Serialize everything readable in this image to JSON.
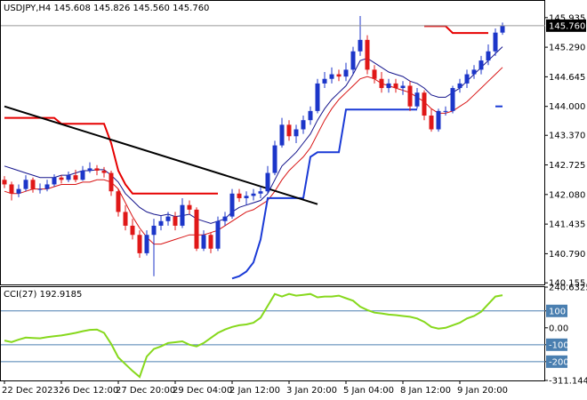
{
  "chart_data": [
    {
      "type": "candlestick",
      "title": "USDJPY,H4  145.608 145.826 145.560 145.760",
      "categories": [
        "22 Dec 2023",
        null,
        null,
        null,
        null,
        null,
        null,
        null,
        "26 Dec 12:00",
        null,
        null,
        null,
        null,
        null,
        null,
        null,
        "27 Dec 20:00",
        null,
        null,
        null,
        null,
        null,
        null,
        null,
        "29 Dec 04:00",
        null,
        null,
        null,
        null,
        null,
        null,
        null,
        "2 Jan 12:00",
        null,
        null,
        null,
        null,
        null,
        null,
        null,
        "3 Jan 20:00",
        null,
        null,
        null,
        null,
        null,
        null,
        null,
        "5 Jan 04:00",
        null,
        null,
        null,
        null,
        null,
        null,
        null,
        "8 Jan 12:00",
        null,
        null,
        null,
        null,
        null,
        null,
        null,
        "9 Jan 20:00",
        null,
        null,
        null,
        null,
        null,
        null
      ],
      "open": [
        142.4,
        142.3,
        142.1,
        142.2,
        142.4,
        142.2,
        142.2,
        142.3,
        142.45,
        142.4,
        142.5,
        142.4,
        142.6,
        142.65,
        142.6,
        142.55,
        142.15,
        141.7,
        141.4,
        141.2,
        140.8,
        141.2,
        141.4,
        141.5,
        141.6,
        141.4,
        141.85,
        141.75,
        140.9,
        141.2,
        140.9,
        141.5,
        141.6,
        142.1,
        142.0,
        142.05,
        142.1,
        142.15,
        142.55,
        143.15,
        143.6,
        143.35,
        143.5,
        143.7,
        143.9,
        144.5,
        144.6,
        144.7,
        144.65,
        144.8,
        145.2,
        145.45,
        144.8,
        144.6,
        144.4,
        144.5,
        144.4,
        144.45,
        144.0,
        144.3,
        143.8,
        143.5,
        143.9,
        143.9,
        144.4,
        144.5,
        144.7,
        144.8,
        145.0,
        145.2,
        145.608
      ],
      "high": [
        142.48,
        142.36,
        142.3,
        142.5,
        142.45,
        142.32,
        142.4,
        142.52,
        142.5,
        142.58,
        142.62,
        142.7,
        142.78,
        142.72,
        142.68,
        142.6,
        142.2,
        141.85,
        141.55,
        141.3,
        141.3,
        141.55,
        141.62,
        141.7,
        141.7,
        142.0,
        141.95,
        141.8,
        141.3,
        141.25,
        141.6,
        141.7,
        142.2,
        142.2,
        142.15,
        142.2,
        142.25,
        142.7,
        143.25,
        143.75,
        143.7,
        143.6,
        143.8,
        144.0,
        144.6,
        144.75,
        144.85,
        144.8,
        144.95,
        145.3,
        145.97,
        145.55,
        144.9,
        144.75,
        144.6,
        144.6,
        144.55,
        144.55,
        144.4,
        144.35,
        143.95,
        143.95,
        144.0,
        144.45,
        144.6,
        144.8,
        144.9,
        145.1,
        145.35,
        145.7,
        145.826
      ],
      "low": [
        142.22,
        141.95,
        142.02,
        142.15,
        142.12,
        142.1,
        142.15,
        142.25,
        142.32,
        142.35,
        142.35,
        142.38,
        142.55,
        142.5,
        142.45,
        142.05,
        141.6,
        141.3,
        141.1,
        140.7,
        140.75,
        140.3,
        141.3,
        141.4,
        141.3,
        141.35,
        141.65,
        140.85,
        140.85,
        140.8,
        140.85,
        141.4,
        141.55,
        141.92,
        141.85,
        141.95,
        142.0,
        142.1,
        142.5,
        143.1,
        143.25,
        143.2,
        143.4,
        143.6,
        143.85,
        144.4,
        144.5,
        144.55,
        144.55,
        144.7,
        145.1,
        144.7,
        144.5,
        144.3,
        144.3,
        144.3,
        144.25,
        143.9,
        143.95,
        143.7,
        143.45,
        143.45,
        143.8,
        143.85,
        144.3,
        144.4,
        144.6,
        144.7,
        144.9,
        145.1,
        145.56
      ],
      "close": [
        142.3,
        142.1,
        142.2,
        142.4,
        142.2,
        142.2,
        142.3,
        142.45,
        142.4,
        142.5,
        142.4,
        142.6,
        142.65,
        142.6,
        142.55,
        142.15,
        141.7,
        141.4,
        141.2,
        140.8,
        141.2,
        141.4,
        141.5,
        141.6,
        141.4,
        141.85,
        141.75,
        140.9,
        141.2,
        140.9,
        141.5,
        141.6,
        142.1,
        142.0,
        142.05,
        142.1,
        142.15,
        142.55,
        143.15,
        143.6,
        143.35,
        143.5,
        143.7,
        143.9,
        144.5,
        144.6,
        144.7,
        144.65,
        144.8,
        145.2,
        145.45,
        144.8,
        144.6,
        144.4,
        144.5,
        144.4,
        144.45,
        144.0,
        144.3,
        143.8,
        143.5,
        143.9,
        143.9,
        144.4,
        144.5,
        144.7,
        144.8,
        145.0,
        145.2,
        145.608,
        145.76
      ],
      "up_color": "#1c36c9",
      "down_color": "#e01818",
      "series": [
        {
          "color": "#d81414",
          "width": 1,
          "values": [
            142.15,
            142.1,
            142.1,
            142.15,
            142.2,
            142.2,
            142.2,
            142.25,
            142.3,
            142.3,
            142.3,
            142.35,
            142.35,
            142.4,
            142.4,
            142.35,
            142.2,
            141.9,
            141.6,
            141.35,
            141.15,
            141.0,
            141.0,
            141.05,
            141.1,
            141.15,
            141.2,
            141.2,
            141.2,
            141.25,
            141.3,
            141.4,
            141.5,
            141.6,
            141.7,
            141.75,
            141.85,
            141.95,
            142.15,
            142.4,
            142.6,
            142.75,
            142.9,
            143.1,
            143.4,
            143.7,
            143.95,
            144.15,
            144.3,
            144.45,
            144.6,
            144.65,
            144.6,
            144.5,
            144.45,
            144.4,
            144.35,
            144.3,
            144.2,
            144.1,
            143.95,
            143.85,
            143.85,
            143.9,
            144.0,
            144.1,
            144.25,
            144.4,
            144.55,
            144.7,
            144.85
          ]
        },
        {
          "color": "#14148c",
          "width": 1,
          "values": [
            142.7,
            142.65,
            142.6,
            142.55,
            142.5,
            142.45,
            142.45,
            142.45,
            142.5,
            142.5,
            142.55,
            142.6,
            142.6,
            142.62,
            142.62,
            142.5,
            142.35,
            142.1,
            141.95,
            141.8,
            141.7,
            141.65,
            141.62,
            141.65,
            141.6,
            141.62,
            141.65,
            141.55,
            141.5,
            141.45,
            141.5,
            141.55,
            141.7,
            141.8,
            141.85,
            141.9,
            141.95,
            142.1,
            142.4,
            142.7,
            142.85,
            143.0,
            143.2,
            143.4,
            143.7,
            143.95,
            144.15,
            144.3,
            144.45,
            144.7,
            145.0,
            145.05,
            144.95,
            144.85,
            144.75,
            144.7,
            144.65,
            144.55,
            144.5,
            144.4,
            144.25,
            144.2,
            144.2,
            144.3,
            144.4,
            144.55,
            144.7,
            144.85,
            145.0,
            145.15,
            145.3
          ]
        },
        {
          "color": "#e60000",
          "width": 2,
          "values": [
            143.75,
            143.75,
            143.75,
            143.75,
            143.75,
            143.75,
            143.75,
            143.75,
            143.62,
            143.62,
            143.62,
            143.62,
            143.62,
            143.62,
            143.62,
            143.2,
            142.6,
            142.3,
            142.1,
            142.1,
            142.1,
            142.1,
            142.1,
            142.1,
            142.1,
            142.1,
            142.1,
            142.1,
            142.1,
            142.1,
            142.1,
            null,
            null,
            null,
            null,
            null,
            null,
            null,
            null,
            null,
            null,
            null,
            null,
            null,
            null,
            null,
            null,
            null,
            null,
            null,
            null,
            null,
            null,
            null,
            null,
            null,
            null,
            null,
            null,
            145.75,
            145.75,
            145.75,
            145.75,
            145.6,
            145.6,
            145.6,
            145.6,
            145.6,
            145.6,
            null,
            null
          ]
        },
        {
          "color": "#1a3ad6",
          "width": 2,
          "values": [
            null,
            null,
            null,
            null,
            null,
            null,
            null,
            null,
            null,
            null,
            null,
            null,
            null,
            null,
            null,
            null,
            null,
            null,
            null,
            null,
            null,
            null,
            null,
            null,
            null,
            null,
            null,
            null,
            null,
            null,
            null,
            null,
            140.25,
            140.3,
            140.4,
            140.6,
            141.1,
            142.0,
            142.0,
            142.0,
            142.0,
            142.0,
            142.0,
            142.9,
            143.0,
            143.0,
            143.0,
            143.0,
            143.93,
            143.93,
            143.93,
            143.93,
            143.93,
            143.93,
            143.93,
            143.93,
            143.93,
            143.93,
            143.93,
            null,
            null,
            null,
            null,
            null,
            null,
            null,
            null,
            null,
            null,
            144.0,
            144.0
          ]
        },
        {
          "color": "#000000",
          "width": 2,
          "connect_gaps": true,
          "values": [
            144.0,
            null,
            null,
            null,
            null,
            null,
            null,
            null,
            null,
            null,
            null,
            null,
            null,
            null,
            null,
            null,
            null,
            null,
            null,
            null,
            null,
            null,
            null,
            null,
            null,
            null,
            null,
            null,
            null,
            null,
            null,
            null,
            null,
            null,
            null,
            null,
            null,
            null,
            null,
            null,
            null,
            null,
            null,
            null,
            141.87,
            null,
            null,
            null,
            null,
            null,
            null,
            null,
            null,
            null,
            null,
            null,
            null,
            null,
            null,
            null,
            null,
            null,
            null,
            null,
            null,
            null,
            null,
            null,
            null,
            null,
            null
          ]
        }
      ],
      "ylim": [
        140.12,
        146.28
      ],
      "yticks": [
        145.935,
        {
          "value": 145.29,
          "label": "145.290"
        },
        144.645,
        {
          "value": 144,
          "label": "144.000"
        },
        {
          "value": 143.37,
          "label": "143.370"
        },
        142.725,
        {
          "value": 142.08,
          "label": "142.080"
        },
        141.435,
        {
          "value": 140.79,
          "label": "140.790"
        },
        140.155
      ],
      "last_price": {
        "value": 145.76,
        "label": "145.760"
      }
    },
    {
      "type": "line",
      "title": "CCI(27) 192.9185",
      "color": "#86d81c",
      "values": [
        -75,
        -84,
        -70,
        -58,
        -60,
        -62,
        -55,
        -50,
        -45,
        -38,
        -30,
        -20,
        -12,
        -10,
        -30,
        -95,
        -175,
        -215,
        -255,
        -290,
        -170,
        -125,
        -110,
        -90,
        -85,
        -80,
        -100,
        -110,
        -90,
        -60,
        -30,
        -10,
        5,
        15,
        20,
        30,
        60,
        130,
        200,
        185,
        200,
        190,
        195,
        200,
        180,
        185,
        185,
        190,
        175,
        160,
        125,
        105,
        90,
        85,
        78,
        75,
        70,
        65,
        55,
        35,
        5,
        -5,
        0,
        15,
        30,
        55,
        70,
        95,
        140,
        185,
        192.9185
      ],
      "ylim": [
        -311.1446,
        240.6325
      ],
      "yticks": [
        240.6325,
        100,
        {
          "value": 0,
          "label": "0.00"
        },
        -100,
        -200,
        -311.1446
      ],
      "levels": [
        100,
        -100,
        -200
      ],
      "level_color": "#4a7fb0"
    }
  ]
}
